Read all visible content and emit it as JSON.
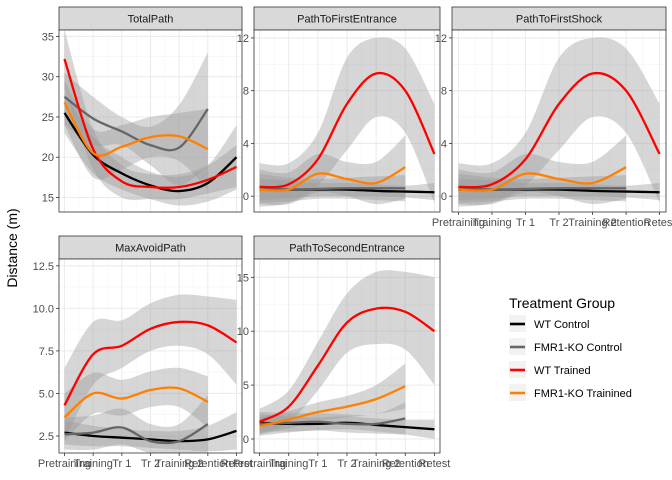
{
  "ylabel": "Distance (m)",
  "legend": {
    "title": "Treatment Group",
    "position": "right",
    "entries": [
      {
        "name": "WT Control",
        "color": "#000000"
      },
      {
        "name": "FMR1-KO Control",
        "color": "#666666"
      },
      {
        "name": "WT Trained",
        "color": "#ff0000"
      },
      {
        "name": "FMR1-KO Trainined",
        "color": "#ff7f00"
      }
    ]
  },
  "chart_data": {
    "type": "line",
    "layout": "facet-grid 2x3 (5 panels), free y scales",
    "grid": true,
    "categories": [
      "Pretraining",
      "Training",
      "Tr 1",
      "Tr 2",
      "Training 2",
      "Retention",
      "Retest"
    ],
    "panels": [
      {
        "title": "TotalPath",
        "ylim": [
          13.2,
          35.8
        ],
        "yticks": [
          15,
          20,
          25,
          30,
          35
        ],
        "show_x_labels": false,
        "series": [
          {
            "name": "WT Control",
            "x": [
              0,
              1,
              2,
              3,
              4,
              5,
              6
            ],
            "y": [
              25.5,
              20.3,
              18.0,
              16.5,
              15.8,
              16.8,
              20.0
            ],
            "lo": [
              23.0,
              18.0,
              16.0,
              14.8,
              14.0,
              14.5,
              16.0
            ],
            "hi": [
              28.0,
              22.5,
              20.0,
              18.2,
              17.6,
              19.0,
              24.0
            ]
          },
          {
            "name": "FMR1-KO Control",
            "x": [
              0,
              1,
              2,
              3,
              4,
              5
            ],
            "y": [
              27.5,
              24.8,
              23.2,
              21.5,
              21.2,
              26.0
            ],
            "lo": [
              24.0,
              21.5,
              21.5,
              19.0,
              16.5,
              19.0
            ],
            "hi": [
              30.5,
              27.5,
              25.0,
              23.8,
              26.5,
              33.0
            ]
          },
          {
            "name": "WT Trained",
            "x": [
              0,
              1,
              2,
              3,
              4,
              5,
              6
            ],
            "y": [
              32.2,
              21.0,
              17.0,
              16.3,
              16.3,
              17.2,
              18.8
            ],
            "lo": [
              28.5,
              18.5,
              15.0,
              14.8,
              14.8,
              15.5,
              16.3
            ],
            "hi": [
              35.8,
              23.5,
              19.0,
              17.9,
              17.9,
              19.0,
              21.5
            ]
          },
          {
            "name": "FMR1-KO Trainined",
            "x": [
              0,
              1,
              2,
              3,
              4,
              5
            ],
            "y": [
              26.8,
              20.5,
              21.3,
              22.5,
              22.6,
              21.0
            ],
            "lo": [
              24.0,
              17.5,
              18.5,
              20.0,
              19.5,
              16.0
            ],
            "hi": [
              29.5,
              23.5,
              24.0,
              25.0,
              25.5,
              26.0
            ]
          }
        ]
      },
      {
        "title": "PathToFirstEntrance",
        "ylim": [
          -1.2,
          12.6
        ],
        "yticks": [
          0,
          4,
          8,
          12
        ],
        "show_x_labels": false,
        "series": [
          {
            "name": "WT Control",
            "x": [
              0,
              1,
              2,
              3,
              4,
              5,
              6
            ],
            "y": [
              0.5,
              0.5,
              0.5,
              0.5,
              0.4,
              0.35,
              0.3
            ],
            "lo": [
              -0.3,
              -0.2,
              0.0,
              0.0,
              0.0,
              -0.1,
              -0.3
            ],
            "hi": [
              1.3,
              1.2,
              1.0,
              1.0,
              0.9,
              0.8,
              1.0
            ]
          },
          {
            "name": "FMR1-KO Control",
            "x": [
              0,
              1,
              2,
              3,
              4,
              5
            ],
            "y": [
              0.6,
              0.5,
              0.55,
              0.6,
              0.6,
              0.6
            ],
            "lo": [
              -0.5,
              -0.4,
              -0.2,
              -0.2,
              -0.3,
              -0.4
            ],
            "hi": [
              1.7,
              1.4,
              1.3,
              1.4,
              1.5,
              1.6
            ]
          },
          {
            "name": "WT Trained",
            "x": [
              0,
              1,
              2,
              3,
              4,
              5,
              6
            ],
            "y": [
              0.7,
              0.9,
              2.8,
              7.0,
              9.3,
              8.0,
              3.2
            ],
            "lo": [
              -0.8,
              -0.5,
              0.8,
              3.5,
              6.0,
              4.8,
              -0.5
            ],
            "hi": [
              2.5,
              2.5,
              4.8,
              10.5,
              12.0,
              11.2,
              7.0
            ]
          },
          {
            "name": "FMR1-KO Trainined",
            "x": [
              0,
              1,
              2,
              3,
              4,
              5
            ],
            "y": [
              0.5,
              0.5,
              1.7,
              1.3,
              1.0,
              2.2
            ],
            "lo": [
              -0.6,
              -0.6,
              0.3,
              0.0,
              -0.6,
              -0.2
            ],
            "hi": [
              2.0,
              1.8,
              3.2,
              2.6,
              2.6,
              4.6
            ]
          }
        ]
      },
      {
        "title": "PathToFirstShock",
        "ylim": [
          -1.2,
          12.6
        ],
        "yticks": [
          0,
          4,
          8,
          12
        ],
        "show_x_labels": true,
        "series": [
          {
            "name": "WT Control",
            "x": [
              0,
              1,
              2,
              3,
              4,
              5,
              6
            ],
            "y": [
              0.5,
              0.5,
              0.5,
              0.5,
              0.4,
              0.35,
              0.3
            ],
            "lo": [
              -0.3,
              -0.2,
              0.0,
              0.0,
              0.0,
              -0.1,
              -0.3
            ],
            "hi": [
              1.3,
              1.2,
              1.0,
              1.0,
              0.9,
              0.8,
              1.0
            ]
          },
          {
            "name": "FMR1-KO Control",
            "x": [
              0,
              1,
              2,
              3,
              4,
              5
            ],
            "y": [
              0.6,
              0.5,
              0.55,
              0.6,
              0.6,
              0.6
            ],
            "lo": [
              -0.5,
              -0.4,
              -0.2,
              -0.2,
              -0.3,
              -0.4
            ],
            "hi": [
              1.7,
              1.4,
              1.3,
              1.4,
              1.5,
              1.6
            ]
          },
          {
            "name": "WT Trained",
            "x": [
              0,
              1,
              2,
              3,
              4,
              5,
              6
            ],
            "y": [
              0.7,
              0.9,
              2.8,
              7.0,
              9.3,
              8.0,
              3.2
            ],
            "lo": [
              -0.8,
              -0.5,
              0.8,
              3.5,
              6.0,
              4.8,
              -0.5
            ],
            "hi": [
              2.5,
              2.5,
              4.8,
              10.5,
              12.0,
              11.2,
              7.0
            ]
          },
          {
            "name": "FMR1-KO Trainined",
            "x": [
              0,
              1,
              2,
              3,
              4,
              5
            ],
            "y": [
              0.5,
              0.5,
              1.7,
              1.3,
              1.0,
              2.2
            ],
            "lo": [
              -0.6,
              -0.6,
              0.3,
              0.0,
              -0.6,
              -0.2
            ],
            "hi": [
              2.0,
              1.8,
              3.2,
              2.6,
              2.6,
              4.6
            ]
          }
        ]
      },
      {
        "title": "MaxAvoidPath",
        "ylim": [
          1.5,
          12.9
        ],
        "yticks": [
          2.5,
          5.0,
          7.5,
          10.0,
          12.5
        ],
        "ytick_labels": [
          "2.5",
          "5.0",
          "7.5",
          "10.0",
          "12.5"
        ],
        "show_x_labels": true,
        "series": [
          {
            "name": "WT Control",
            "x": [
              0,
              1,
              2,
              3,
              4,
              5,
              6
            ],
            "y": [
              2.7,
              2.5,
              2.4,
              2.3,
              2.2,
              2.3,
              2.8
            ],
            "lo": [
              2.0,
              1.9,
              1.9,
              1.8,
              1.7,
              1.6,
              1.7
            ],
            "hi": [
              3.4,
              3.1,
              2.9,
              2.8,
              2.8,
              3.1,
              3.9
            ]
          },
          {
            "name": "FMR1-KO Control",
            "x": [
              0,
              1,
              2,
              3,
              4,
              5
            ],
            "y": [
              2.6,
              2.7,
              3.0,
              2.2,
              2.2,
              3.2
            ],
            "lo": [
              1.7,
              1.7,
              2.0,
              1.5,
              1.5,
              1.5
            ],
            "hi": [
              3.6,
              3.7,
              4.1,
              3.2,
              3.2,
              4.9
            ]
          },
          {
            "name": "WT Trained",
            "x": [
              0,
              1,
              2,
              3,
              4,
              5,
              6
            ],
            "y": [
              4.3,
              7.3,
              7.8,
              8.8,
              9.2,
              9.0,
              8.0
            ],
            "lo": [
              2.2,
              5.5,
              6.5,
              7.5,
              7.8,
              7.3,
              5.5
            ],
            "hi": [
              6.5,
              9.2,
              9.3,
              10.3,
              10.8,
              10.7,
              10.5
            ]
          },
          {
            "name": "FMR1-KO Trainined",
            "x": [
              0,
              1,
              2,
              3,
              4,
              5
            ],
            "y": [
              3.6,
              5.0,
              4.7,
              5.2,
              5.3,
              4.5
            ],
            "lo": [
              2.2,
              3.8,
              3.7,
              4.2,
              4.2,
              3.0
            ],
            "hi": [
              5.0,
              6.2,
              5.8,
              6.3,
              6.5,
              6.0
            ]
          }
        ]
      },
      {
        "title": "PathToSecondEntrance",
        "ylim": [
          -1.3,
          16.7
        ],
        "yticks": [
          0,
          5,
          10,
          15
        ],
        "show_x_labels": true,
        "series": [
          {
            "name": "WT Control",
            "x": [
              0,
              1,
              2,
              3,
              4,
              5,
              6
            ],
            "y": [
              1.5,
              1.4,
              1.4,
              1.5,
              1.3,
              1.1,
              0.9
            ],
            "lo": [
              0.7,
              0.7,
              0.8,
              0.9,
              0.7,
              0.4,
              0.0
            ],
            "hi": [
              2.3,
              2.1,
              2.0,
              2.1,
              1.9,
              1.8,
              1.8
            ]
          },
          {
            "name": "FMR1-KO Control",
            "x": [
              0,
              1,
              2,
              3,
              4,
              5
            ],
            "y": [
              1.4,
              1.5,
              1.6,
              1.4,
              1.4,
              1.9
            ],
            "lo": [
              0.3,
              0.6,
              0.8,
              0.6,
              0.5,
              0.4
            ],
            "hi": [
              2.5,
              2.4,
              2.4,
              2.3,
              2.3,
              3.4
            ]
          },
          {
            "name": "WT Trained",
            "x": [
              0,
              1,
              2,
              3,
              4,
              5,
              6
            ],
            "y": [
              1.6,
              3.0,
              6.8,
              10.8,
              12.1,
              11.8,
              10.0
            ],
            "lo": [
              0.5,
              1.5,
              4.5,
              8.0,
              8.8,
              8.3,
              5.0
            ],
            "hi": [
              2.8,
              4.5,
              9.0,
              13.5,
              15.5,
              15.5,
              15.0
            ]
          },
          {
            "name": "FMR1-KO Trainined",
            "x": [
              0,
              1,
              2,
              3,
              4,
              5
            ],
            "y": [
              1.2,
              1.8,
              2.5,
              3.0,
              3.7,
              4.9
            ],
            "lo": [
              0.4,
              1.0,
              1.6,
              2.0,
              2.3,
              2.8
            ],
            "hi": [
              2.0,
              2.6,
              3.4,
              4.0,
              5.0,
              7.0
            ]
          }
        ]
      }
    ]
  }
}
